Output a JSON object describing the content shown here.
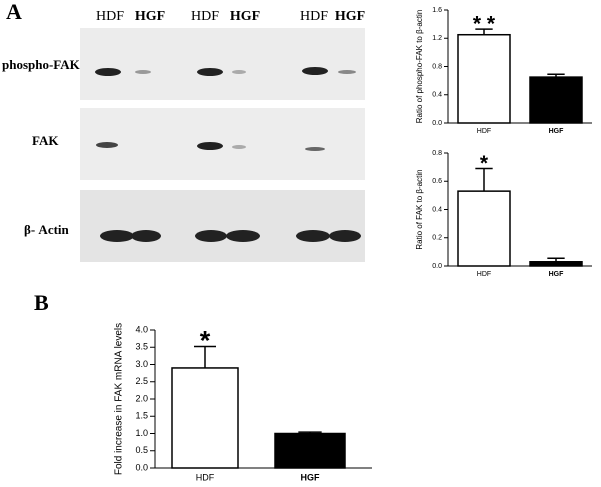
{
  "panels": {
    "a": "A",
    "b": "B"
  },
  "blot": {
    "lanes": [
      "HDF",
      "HGF",
      "HDF",
      "HGF",
      "HDF",
      "HGF"
    ],
    "rows": [
      "phospho-FAK",
      "FAK",
      "β- Actin"
    ]
  },
  "chart_data": [
    {
      "type": "bar",
      "ylabel": "Ratio of phospho-FAK to β-actin",
      "categories": [
        "HDF",
        "HGF"
      ],
      "values": [
        1.25,
        0.65
      ],
      "errors": [
        0.08,
        0.04
      ],
      "colors": [
        "#ffffff",
        "#000000"
      ],
      "ylim": [
        0,
        1.6
      ],
      "yticks": [
        {
          "value": 0,
          "label": "0.0"
        },
        0.4,
        0.8,
        1.2,
        1.6
      ],
      "annotation": "* *"
    },
    {
      "type": "bar",
      "ylabel": "Ratio of FAK to β-actin",
      "categories": [
        "HDF",
        "HGF"
      ],
      "values": [
        0.53,
        0.03
      ],
      "errors": [
        0.16,
        0.025
      ],
      "colors": [
        "#ffffff",
        "#000000"
      ],
      "ylim": [
        0,
        0.8
      ],
      "yticks": [
        {
          "value": 0,
          "label": "0.0"
        },
        0.2,
        0.4,
        0.6,
        0.8
      ],
      "annotation": "*"
    },
    {
      "type": "bar",
      "ylabel": "Fold increase in FAK mRNA levels",
      "categories": [
        "HDF",
        "HGF"
      ],
      "values": [
        2.9,
        1.0
      ],
      "errors": [
        0.62,
        0.04
      ],
      "colors": [
        "#ffffff",
        "#000000"
      ],
      "ylim": [
        0,
        4.0
      ],
      "yticks": [
        {
          "value": 0,
          "label": "0.0"
        },
        0.5,
        {
          "value": 1,
          "label": "1.0"
        },
        1.5,
        {
          "value": 2,
          "label": "2.0"
        },
        2.5,
        {
          "value": 3,
          "label": "3.0"
        },
        3.5,
        {
          "value": 4,
          "label": "4.0"
        }
      ],
      "annotation": "*"
    }
  ]
}
